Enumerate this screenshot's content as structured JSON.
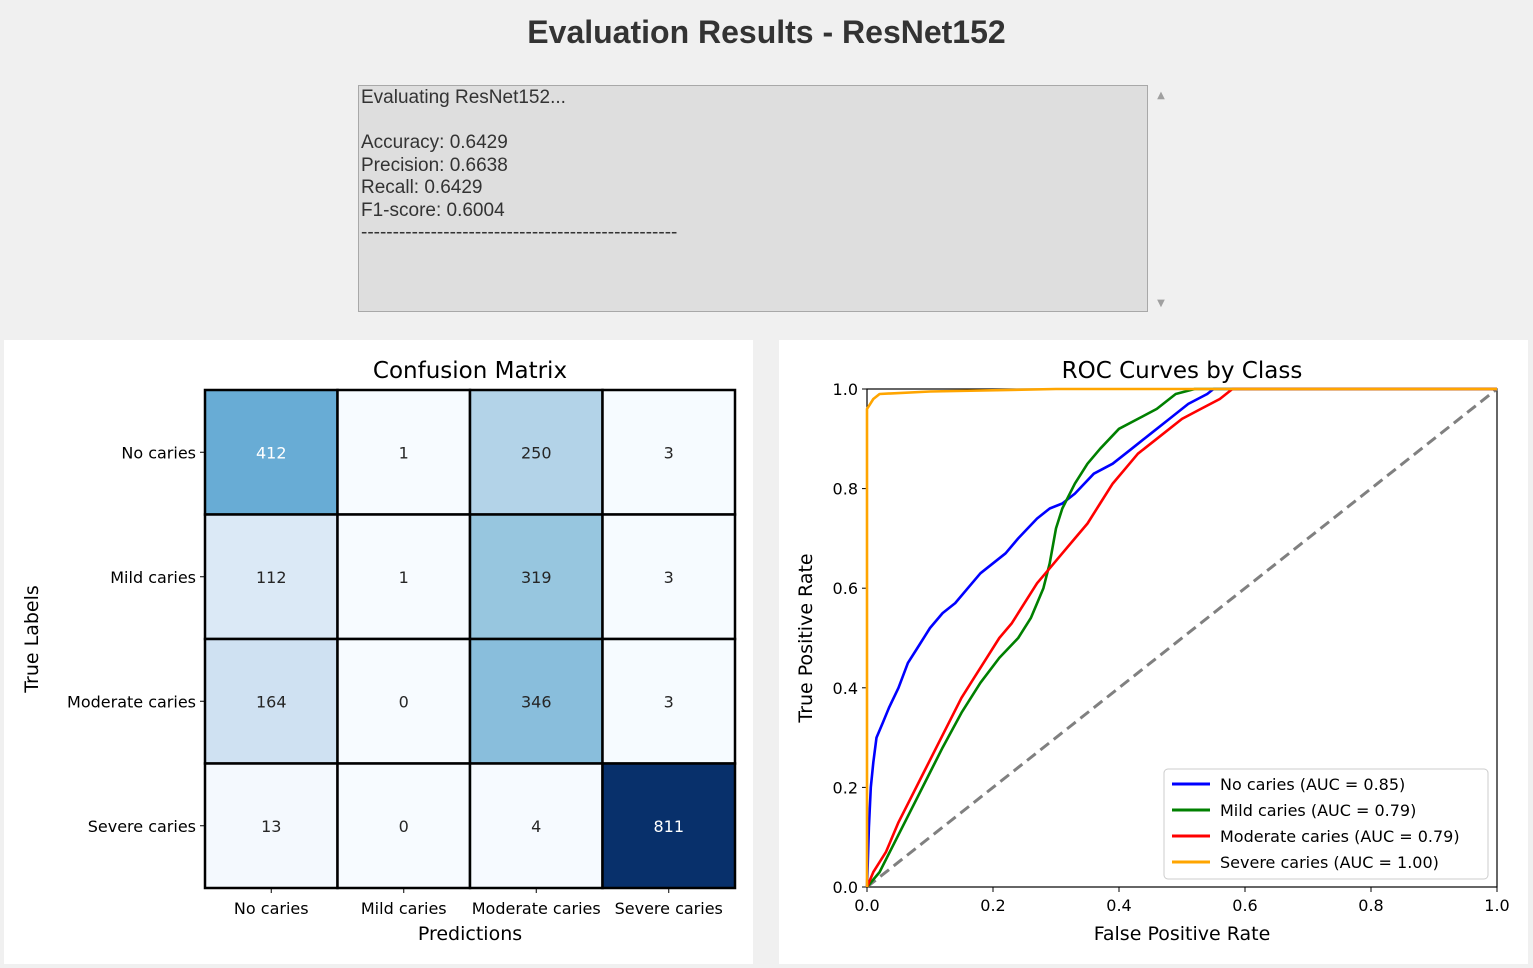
{
  "window": {
    "title": "Evaluation Results - ResNet152"
  },
  "log": {
    "lines": [
      "Evaluating ResNet152...",
      "",
      "Accuracy: 0.6429",
      "Precision: 0.6638",
      "Recall: 0.6429",
      "F1-score: 0.6004",
      "--------------------------------------------------"
    ]
  },
  "chart_data": [
    {
      "type": "heatmap",
      "title": "Confusion Matrix",
      "xlabel": "Predictions",
      "ylabel": "True Labels",
      "x_categories": [
        "No caries",
        "Mild caries",
        "Moderate caries",
        "Severe caries"
      ],
      "y_categories": [
        "No caries",
        "Mild caries",
        "Moderate caries",
        "Severe caries"
      ],
      "values": [
        [
          412,
          1,
          250,
          3
        ],
        [
          112,
          1,
          319,
          3
        ],
        [
          164,
          0,
          346,
          3
        ],
        [
          13,
          0,
          4,
          811
        ]
      ],
      "colormap": "Blues",
      "vmin": 0,
      "vmax": 811
    },
    {
      "type": "line",
      "title": "ROC Curves by Class",
      "xlabel": "False Positive Rate",
      "ylabel": "True Positive Rate",
      "xlim": [
        0.0,
        1.0
      ],
      "ylim": [
        0.0,
        1.0
      ],
      "xticks": [
        "0.0",
        "0.2",
        "0.4",
        "0.6",
        "0.8",
        "1.0"
      ],
      "yticks": [
        "0.0",
        "0.2",
        "0.4",
        "0.6",
        "0.8",
        "1.0"
      ],
      "legend_position": "lower-right",
      "series": [
        {
          "name": "No caries (AUC = 0.85)",
          "color": "#0000ff",
          "points": [
            [
              0,
              0
            ],
            [
              0.003,
              0.12
            ],
            [
              0.006,
              0.2
            ],
            [
              0.01,
              0.25
            ],
            [
              0.015,
              0.3
            ],
            [
              0.025,
              0.33
            ],
            [
              0.035,
              0.36
            ],
            [
              0.05,
              0.4
            ],
            [
              0.065,
              0.45
            ],
            [
              0.08,
              0.48
            ],
            [
              0.1,
              0.52
            ],
            [
              0.12,
              0.55
            ],
            [
              0.14,
              0.57
            ],
            [
              0.16,
              0.6
            ],
            [
              0.18,
              0.63
            ],
            [
              0.2,
              0.65
            ],
            [
              0.22,
              0.67
            ],
            [
              0.24,
              0.7
            ],
            [
              0.27,
              0.74
            ],
            [
              0.29,
              0.76
            ],
            [
              0.31,
              0.77
            ],
            [
              0.33,
              0.79
            ],
            [
              0.36,
              0.83
            ],
            [
              0.39,
              0.85
            ],
            [
              0.42,
              0.88
            ],
            [
              0.45,
              0.91
            ],
            [
              0.48,
              0.94
            ],
            [
              0.51,
              0.97
            ],
            [
              0.54,
              0.99
            ],
            [
              0.55,
              1.0
            ],
            [
              1.0,
              1.0
            ]
          ]
        },
        {
          "name": "Mild caries (AUC = 0.79)",
          "color": "#008000",
          "points": [
            [
              0,
              0
            ],
            [
              0.02,
              0.03
            ],
            [
              0.04,
              0.08
            ],
            [
              0.06,
              0.13
            ],
            [
              0.08,
              0.18
            ],
            [
              0.1,
              0.23
            ],
            [
              0.12,
              0.28
            ],
            [
              0.15,
              0.35
            ],
            [
              0.18,
              0.41
            ],
            [
              0.21,
              0.46
            ],
            [
              0.24,
              0.5
            ],
            [
              0.26,
              0.54
            ],
            [
              0.28,
              0.6
            ],
            [
              0.29,
              0.65
            ],
            [
              0.3,
              0.72
            ],
            [
              0.31,
              0.76
            ],
            [
              0.33,
              0.81
            ],
            [
              0.35,
              0.85
            ],
            [
              0.37,
              0.88
            ],
            [
              0.4,
              0.92
            ],
            [
              0.43,
              0.94
            ],
            [
              0.46,
              0.96
            ],
            [
              0.49,
              0.99
            ],
            [
              0.52,
              1.0
            ],
            [
              1.0,
              1.0
            ]
          ]
        },
        {
          "name": "Moderate caries (AUC = 0.79)",
          "color": "#ff0000",
          "points": [
            [
              0,
              0
            ],
            [
              0.01,
              0.03
            ],
            [
              0.03,
              0.07
            ],
            [
              0.05,
              0.13
            ],
            [
              0.07,
              0.18
            ],
            [
              0.09,
              0.23
            ],
            [
              0.11,
              0.28
            ],
            [
              0.13,
              0.33
            ],
            [
              0.15,
              0.38
            ],
            [
              0.17,
              0.42
            ],
            [
              0.19,
              0.46
            ],
            [
              0.21,
              0.5
            ],
            [
              0.23,
              0.53
            ],
            [
              0.25,
              0.57
            ],
            [
              0.27,
              0.61
            ],
            [
              0.29,
              0.64
            ],
            [
              0.31,
              0.67
            ],
            [
              0.33,
              0.7
            ],
            [
              0.35,
              0.73
            ],
            [
              0.37,
              0.77
            ],
            [
              0.39,
              0.81
            ],
            [
              0.41,
              0.84
            ],
            [
              0.43,
              0.87
            ],
            [
              0.46,
              0.9
            ],
            [
              0.5,
              0.94
            ],
            [
              0.53,
              0.96
            ],
            [
              0.56,
              0.98
            ],
            [
              0.58,
              1.0
            ],
            [
              1.0,
              1.0
            ]
          ]
        },
        {
          "name": "Severe caries (AUC = 1.00)",
          "color": "#ffa500",
          "points": [
            [
              0,
              0
            ],
            [
              0,
              0.96
            ],
            [
              0.005,
              0.97
            ],
            [
              0.01,
              0.98
            ],
            [
              0.02,
              0.99
            ],
            [
              0.1,
              0.995
            ],
            [
              0.3,
              1.0
            ],
            [
              1.0,
              1.0
            ]
          ]
        }
      ],
      "reference_line": {
        "color": "#808080",
        "style": "dashed",
        "points": [
          [
            0,
            0
          ],
          [
            1,
            1
          ]
        ]
      }
    }
  ]
}
